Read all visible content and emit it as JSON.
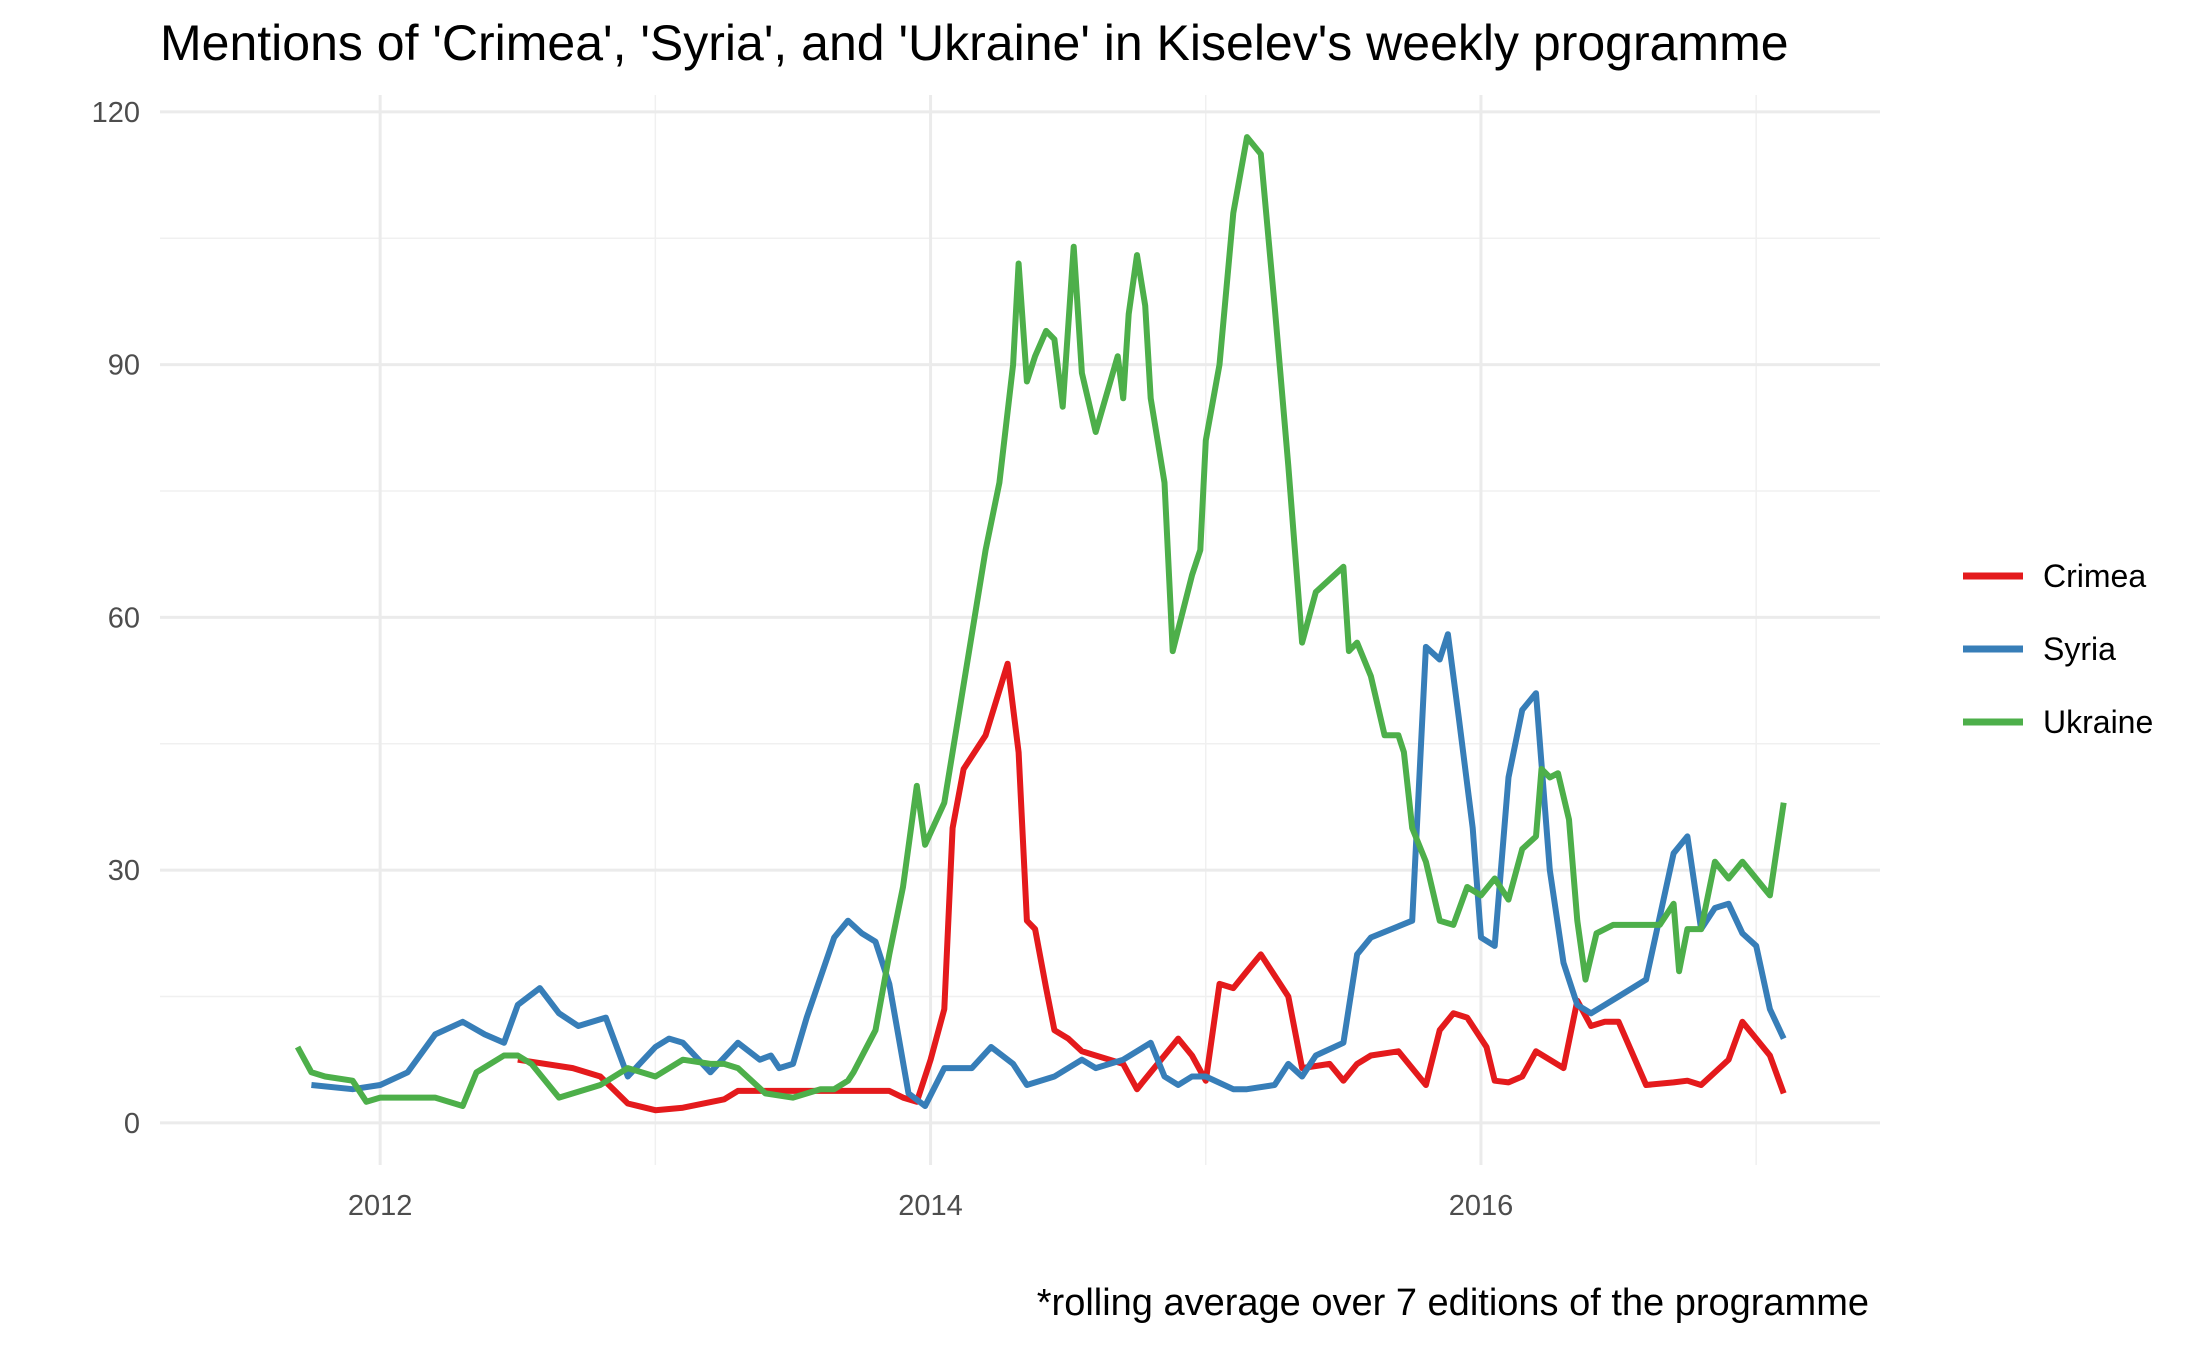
{
  "chart_data": {
    "type": "line",
    "title": "Mentions of 'Crimea', 'Syria', and 'Ukraine' in Kiselev's weekly programme",
    "caption": "*rolling average over 7 editions of the programme",
    "xlabel": "",
    "ylabel": "",
    "xlim": [
      2011.2,
      2017.45
    ],
    "ylim": [
      -5,
      122
    ],
    "x_ticks": [
      2012,
      2014,
      2016
    ],
    "y_ticks": [
      0,
      30,
      60,
      90,
      120
    ],
    "grid": true,
    "legend_position": "right",
    "colors": {
      "Crimea": "#e41a1c",
      "Syria": "#377eb8",
      "Ukraine": "#4daf4a"
    },
    "series": [
      {
        "name": "Crimea",
        "x": [
          2012.5,
          2012.7,
          2012.8,
          2012.9,
          2013.0,
          2013.1,
          2013.25,
          2013.3,
          2013.5,
          2013.75,
          2013.85,
          2013.9,
          2013.95,
          2014.0,
          2014.05,
          2014.08,
          2014.12,
          2014.2,
          2014.28,
          2014.32,
          2014.35,
          2014.38,
          2014.42,
          2014.45,
          2014.5,
          2014.55,
          2014.6,
          2014.7,
          2014.75,
          2014.8,
          2014.85,
          2014.9,
          2014.95,
          2015.0,
          2015.05,
          2015.1,
          2015.15,
          2015.2,
          2015.3,
          2015.35,
          2015.45,
          2015.5,
          2015.55,
          2015.6,
          2015.7,
          2015.8,
          2015.85,
          2015.9,
          2015.95,
          2016.02,
          2016.05,
          2016.1,
          2016.15,
          2016.2,
          2016.3,
          2016.35,
          2016.4,
          2016.45,
          2016.5,
          2016.6,
          2016.7,
          2016.75,
          2016.8,
          2016.85,
          2016.9,
          2016.95,
          2017.05,
          2017.1
        ],
        "values": [
          7.5,
          6.5,
          5.5,
          2.3,
          1.5,
          1.8,
          2.8,
          3.8,
          3.8,
          3.8,
          3.8,
          3.0,
          2.5,
          7.5,
          13.5,
          35.0,
          42.0,
          46.0,
          54.5,
          44.0,
          24.0,
          23.0,
          16.0,
          11.0,
          10.0,
          8.5,
          8.0,
          7.0,
          4.0,
          6.0,
          8.0,
          10.0,
          8.0,
          5.0,
          16.5,
          16.0,
          18.0,
          20.0,
          15.0,
          6.5,
          7.0,
          5.0,
          7.0,
          8.0,
          8.5,
          4.5,
          11.0,
          13.0,
          12.5,
          9.0,
          5.0,
          4.8,
          5.5,
          8.5,
          6.5,
          14.5,
          11.5,
          12.0,
          12.0,
          4.5,
          4.8,
          5.0,
          4.5,
          6.0,
          7.5,
          12.0,
          8.0,
          3.5
        ]
      },
      {
        "name": "Syria",
        "x": [
          2011.75,
          2011.9,
          2012.0,
          2012.1,
          2012.2,
          2012.3,
          2012.38,
          2012.45,
          2012.5,
          2012.58,
          2012.65,
          2012.72,
          2012.82,
          2012.9,
          2013.0,
          2013.05,
          2013.1,
          2013.2,
          2013.3,
          2013.38,
          2013.42,
          2013.45,
          2013.5,
          2013.55,
          2013.65,
          2013.7,
          2013.75,
          2013.8,
          2013.85,
          2013.92,
          2013.98,
          2014.05,
          2014.15,
          2014.22,
          2014.3,
          2014.35,
          2014.45,
          2014.55,
          2014.6,
          2014.7,
          2014.8,
          2014.85,
          2014.9,
          2014.95,
          2015.0,
          2015.1,
          2015.15,
          2015.25,
          2015.3,
          2015.35,
          2015.4,
          2015.5,
          2015.55,
          2015.6,
          2015.75,
          2015.8,
          2015.85,
          2015.88,
          2015.92,
          2015.97,
          2016.0,
          2016.05,
          2016.1,
          2016.15,
          2016.2,
          2016.25,
          2016.3,
          2016.35,
          2016.4,
          2016.45,
          2016.5,
          2016.55,
          2016.6,
          2016.7,
          2016.75,
          2016.8,
          2016.85,
          2016.9,
          2016.95,
          2017.0,
          2017.05,
          2017.1
        ],
        "values": [
          4.5,
          4.0,
          4.5,
          6.0,
          10.5,
          12.0,
          10.5,
          9.5,
          14.0,
          16.0,
          13.0,
          11.5,
          12.5,
          5.5,
          9.0,
          10.0,
          9.5,
          6.0,
          9.5,
          7.5,
          8.0,
          6.5,
          7.0,
          12.5,
          22.0,
          24.0,
          22.5,
          21.5,
          16.5,
          3.5,
          2.0,
          6.5,
          6.5,
          9.0,
          7.0,
          4.5,
          5.5,
          7.5,
          6.5,
          7.5,
          9.5,
          5.5,
          4.5,
          5.5,
          5.5,
          4.0,
          4.0,
          4.5,
          7.0,
          5.5,
          8.0,
          9.5,
          20.0,
          22.0,
          24.0,
          56.5,
          55.0,
          58.0,
          48.0,
          35.0,
          22.0,
          21.0,
          41.0,
          49.0,
          51.0,
          30.0,
          19.0,
          14.0,
          13.0,
          14.0,
          15.0,
          16.0,
          17.0,
          32.0,
          34.0,
          23.0,
          25.5,
          26.0,
          22.5,
          21.0,
          13.5,
          10.0
        ]
      },
      {
        "name": "Ukraine",
        "x": [
          2011.7,
          2011.75,
          2011.8,
          2011.9,
          2011.95,
          2012.0,
          2012.1,
          2012.2,
          2012.3,
          2012.35,
          2012.45,
          2012.5,
          2012.55,
          2012.65,
          2012.8,
          2012.9,
          2013.0,
          2013.1,
          2013.2,
          2013.25,
          2013.3,
          2013.4,
          2013.5,
          2013.6,
          2013.65,
          2013.7,
          2013.72,
          2013.8,
          2013.85,
          2013.9,
          2013.95,
          2013.98,
          2014.05,
          2014.1,
          2014.2,
          2014.25,
          2014.3,
          2014.32,
          2014.35,
          2014.38,
          2014.42,
          2014.45,
          2014.48,
          2014.52,
          2014.55,
          2014.6,
          2014.68,
          2014.7,
          2014.72,
          2014.75,
          2014.78,
          2014.8,
          2014.85,
          2014.88,
          2014.95,
          2014.98,
          2015.0,
          2015.05,
          2015.1,
          2015.15,
          2015.2,
          2015.25,
          2015.3,
          2015.35,
          2015.4,
          2015.5,
          2015.52,
          2015.55,
          2015.6,
          2015.65,
          2015.7,
          2015.72,
          2015.75,
          2015.8,
          2015.85,
          2015.9,
          2015.95,
          2016.0,
          2016.05,
          2016.1,
          2016.15,
          2016.2,
          2016.22,
          2016.25,
          2016.28,
          2016.32,
          2016.35,
          2016.38,
          2016.42,
          2016.48,
          2016.55,
          2016.6,
          2016.65,
          2016.7,
          2016.72,
          2016.75,
          2016.8,
          2016.85,
          2016.9,
          2016.95,
          2017.05,
          2017.1
        ],
        "values": [
          9.0,
          6.0,
          5.5,
          5.0,
          2.5,
          3.0,
          3.0,
          3.0,
          2.0,
          6.0,
          8.0,
          8.0,
          7.0,
          3.0,
          4.5,
          6.5,
          5.5,
          7.5,
          7.0,
          7.0,
          6.5,
          3.5,
          3.0,
          4.0,
          4.0,
          5.0,
          6.0,
          11.0,
          20.0,
          28.0,
          40.0,
          33.0,
          38.0,
          48.0,
          68.0,
          76.0,
          90.0,
          102.0,
          88.0,
          91.0,
          94.0,
          93.0,
          85.0,
          104.0,
          89.0,
          82.0,
          91.0,
          86.0,
          96.0,
          103.0,
          97.0,
          86.0,
          76.0,
          56.0,
          65.0,
          68.0,
          81.0,
          90.0,
          108.0,
          117.0,
          115.0,
          97.0,
          78.0,
          57.0,
          63.0,
          66.0,
          56.0,
          57.0,
          53.0,
          46.0,
          46.0,
          44.0,
          35.0,
          31.0,
          24.0,
          23.5,
          28.0,
          27.0,
          29.0,
          26.5,
          32.5,
          34.0,
          42.0,
          41.0,
          41.5,
          36.0,
          24.0,
          17.0,
          22.5,
          23.5,
          23.5,
          23.5,
          23.5,
          26.0,
          18.0,
          23.0,
          23.0,
          31.0,
          29.0,
          31.0,
          27.0,
          38.0
        ]
      }
    ]
  }
}
